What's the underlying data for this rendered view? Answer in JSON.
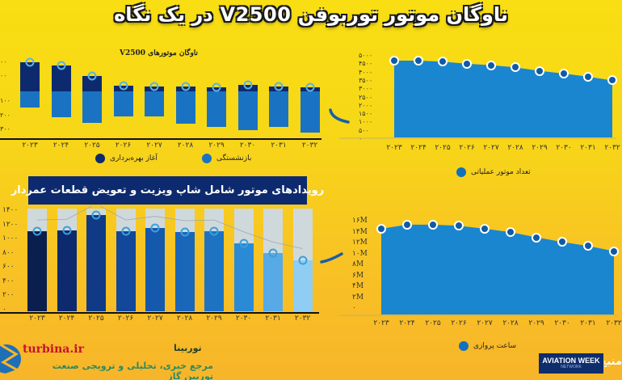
{
  "header": {
    "title": "ناوگان موتور توربوفن V2500 در یک نگاه"
  },
  "colors": {
    "background_top": "#f8de12",
    "background_bottom": "#f7b52a",
    "dark_navy": "#0d2a6e",
    "mid_blue": "#1a73c2",
    "area_blue": "#1a86d0",
    "light_blue": "#8fcdf2",
    "banner_bg": "#0d2a6e",
    "brand_red": "#c8102e",
    "brand_green": "#2e8a5e"
  },
  "fleet_chart": {
    "title": "ناوگان موتورهای V2500",
    "legend": {
      "entry_into_service": "آغاز بهره‌برداری",
      "retirement": "بازنشستگی"
    },
    "y_ticks_visible": [
      "۰۰",
      "۰۰",
      "۱۰۰",
      "۲۰۰",
      "۳۰۰"
    ]
  },
  "operational_chart": {
    "legend": "تعداد موتور عملیاتی",
    "y_ticks": [
      "۵۰۰۰",
      "۴۵۰۰",
      "۴۰۰۰",
      "۳۵۰۰",
      "۳۰۰۰",
      "۲۵۰۰",
      "۲۰۰۰",
      "۱۵۰۰",
      "۱۰۰۰",
      "۵۰۰",
      "۰"
    ]
  },
  "shop_visit_chart": {
    "banner": "رویدادهای موتور شامل شاپ ویزیت و تعویض قطعات عمردار",
    "y_ticks": [
      "۱۴۰۰",
      "۱۲۰۰",
      "۱۰۰۰",
      "۸۰۰",
      "۶۰۰",
      "۴۰۰",
      "۲۰۰",
      "۰"
    ]
  },
  "flight_hours_chart": {
    "legend": "ساعت پروازی",
    "y_ticks": [
      "۱۶M",
      "۱۴M",
      "۱۲M",
      "۱۰M",
      "۸M",
      "۶M",
      "۴M",
      "۲M",
      "۰"
    ]
  },
  "years": [
    "۲۰۲۳",
    "۲۰۲۴",
    "۲۰۲۵",
    "۲۰۲۶",
    "۲۰۲۷",
    "۲۰۲۸",
    "۲۰۲۹",
    "۲۰۳۰",
    "۲۰۳۱",
    "۲۰۳۲"
  ],
  "footer": {
    "site": "turbina.ir",
    "brand_name": "توربینا",
    "tagline": "مرجع خبری، تحلیلی و ترویجی صنعت توربین گاز",
    "source_label": "منبع:",
    "source_logo": "AVIATION WEEK",
    "source_logo_sub": "NETWORK"
  },
  "chart_data": [
    {
      "type": "bar",
      "title": "ناوگان موتورهای V2500",
      "categories": [
        "2023",
        "2024",
        "2025",
        "2026",
        "2027",
        "2028",
        "2029",
        "2030",
        "2031",
        "2032"
      ],
      "series": [
        {
          "name": "آغاز بهره‌برداری (Entry into service)",
          "values": [
            185,
            165,
            100,
            35,
            30,
            30,
            25,
            40,
            30,
            25
          ]
        },
        {
          "name": "بازنشستگی (Retirements)",
          "values": [
            -105,
            -165,
            -200,
            -160,
            -160,
            -205,
            -225,
            -250,
            -230,
            -265
          ]
        }
      ],
      "xlabel": "",
      "ylabel": "",
      "ylim": [
        -300,
        300
      ],
      "legend_position": "bottom"
    },
    {
      "type": "area",
      "title": "تعداد موتور عملیاتی (Operational engines)",
      "categories": [
        "2023",
        "2024",
        "2025",
        "2026",
        "2027",
        "2028",
        "2029",
        "2030",
        "2031",
        "2032"
      ],
      "values": [
        4850,
        4850,
        4780,
        4650,
        4560,
        4420,
        4200,
        4030,
        3830,
        3600
      ],
      "xlabel": "",
      "ylabel": "",
      "ylim": [
        0,
        5000
      ],
      "legend_position": "bottom"
    },
    {
      "type": "bar",
      "title": "رویدادهای موتور شامل شاپ ویزیت و تعویض قطعات عمردار (Engine events incl. shop visits and LLP replacements)",
      "categories": [
        "2023",
        "2024",
        "2025",
        "2026",
        "2027",
        "2028",
        "2029",
        "2030",
        "2031",
        "2032"
      ],
      "values": [
        1090,
        1100,
        1310,
        1090,
        1140,
        1080,
        1090,
        930,
        790,
        700
      ],
      "xlabel": "",
      "ylabel": "",
      "ylim": [
        0,
        1400
      ]
    },
    {
      "type": "area",
      "title": "ساعت پروازی (Flight hours)",
      "categories": [
        "2023",
        "2024",
        "2025",
        "2026",
        "2027",
        "2028",
        "2029",
        "2030",
        "2031",
        "2032"
      ],
      "values": [
        14.9,
        15.6,
        15.6,
        15.4,
        14.9,
        14.3,
        13.4,
        12.6,
        11.9,
        11.0
      ],
      "unit": "M",
      "xlabel": "",
      "ylabel": "",
      "ylim": [
        0,
        16
      ],
      "legend_position": "bottom"
    }
  ]
}
